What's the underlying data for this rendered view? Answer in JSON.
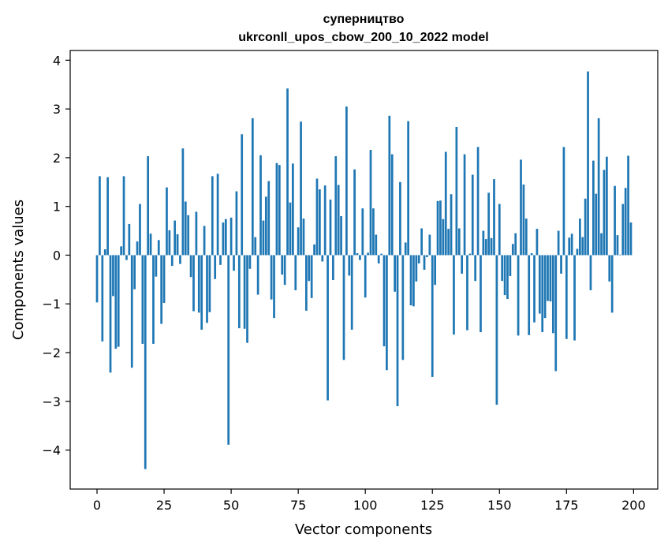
{
  "chart_data": {
    "type": "bar",
    "title_line1": "суперництво",
    "title_line2": "ukrconll_upos_cbow_200_10_2022 model",
    "xlabel": "Vector components",
    "ylabel": "Components values",
    "xlim": [
      -10,
      209
    ],
    "ylim": [
      -4.8,
      4.2
    ],
    "x_ticks": [
      0,
      25,
      50,
      75,
      100,
      125,
      150,
      175,
      200
    ],
    "x_tick_labels": [
      "0",
      "25",
      "50",
      "75",
      "100",
      "125",
      "150",
      "175",
      "200"
    ],
    "y_ticks": [
      -4,
      -3,
      -2,
      -1,
      0,
      1,
      2,
      3,
      4
    ],
    "y_tick_labels": [
      "−4",
      "−3",
      "−2",
      "−1",
      "0",
      "1",
      "2",
      "3",
      "4"
    ],
    "color": "#1f77b4",
    "grid": false,
    "values": [
      -0.97,
      1.62,
      -1.77,
      0.12,
      1.6,
      -2.41,
      -0.84,
      -1.92,
      -1.88,
      0.18,
      1.62,
      -0.1,
      0.64,
      -2.31,
      -0.7,
      0.28,
      1.05,
      -1.82,
      -4.39,
      2.03,
      0.44,
      -1.82,
      -0.44,
      0.31,
      -1.41,
      -0.98,
      1.39,
      0.51,
      -0.22,
      0.71,
      0.43,
      -0.18,
      2.19,
      1.1,
      0.82,
      -0.45,
      -1.15,
      0.89,
      -1.18,
      -1.53,
      0.6,
      -1.39,
      -1.17,
      1.62,
      -0.49,
      1.67,
      -0.2,
      0.67,
      0.74,
      -3.89,
      0.77,
      -0.32,
      1.31,
      -1.5,
      2.48,
      -1.51,
      -1.8,
      -0.28,
      2.81,
      0.37,
      -0.81,
      2.05,
      0.71,
      1.2,
      1.52,
      -0.91,
      -1.29,
      1.89,
      1.85,
      -0.4,
      -0.61,
      3.42,
      1.08,
      1.88,
      -0.72,
      0.57,
      2.74,
      0.75,
      -1.14,
      -0.53,
      -0.88,
      0.22,
      1.57,
      1.35,
      -0.13,
      1.43,
      -2.98,
      1.14,
      -0.51,
      2.03,
      1.44,
      0.8,
      -2.15,
      3.05,
      -0.42,
      -1.53,
      1.76,
      0.04,
      -0.1,
      0.96,
      -0.87,
      0.05,
      2.16,
      0.96,
      0.42,
      -0.17,
      0.03,
      -1.87,
      -2.36,
      2.86,
      2.07,
      -0.75,
      -3.1,
      1.5,
      -2.15,
      0.26,
      2.75,
      -1.03,
      -1.05,
      -0.54,
      -0.17,
      0.55,
      -0.3,
      -0.04,
      0.42,
      -2.5,
      -0.61,
      1.11,
      1.12,
      0.74,
      2.12,
      0.54,
      1.25,
      -1.63,
      2.63,
      0.55,
      -0.38,
      2.07,
      -1.54,
      0.03,
      1.65,
      -0.53,
      2.22,
      -1.58,
      0.5,
      0.33,
      1.28,
      0.35,
      1.56,
      -3.07,
      1.05,
      -0.53,
      -0.82,
      -0.9,
      -0.43,
      0.23,
      0.45,
      -1.65,
      1.96,
      1.45,
      0.75,
      -1.64,
      0.04,
      -1.38,
      0.54,
      -1.2,
      -1.58,
      -1.29,
      -0.94,
      -0.95,
      -1.6,
      -2.38,
      0.5,
      -0.38,
      2.22,
      -1.72,
      0.36,
      0.44,
      -1.75,
      0.13,
      0.75,
      0.37,
      1.16,
      3.77,
      -0.72,
      1.94,
      1.26,
      2.81,
      0.45,
      1.75,
      2.02,
      -0.54,
      -1.18,
      1.42,
      0.41,
      0.01,
      1.05,
      1.38,
      2.04,
      0.67
    ]
  }
}
